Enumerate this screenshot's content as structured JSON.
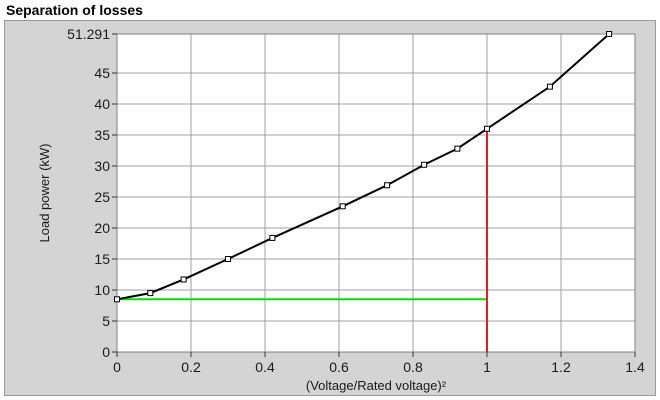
{
  "panel": {
    "title": "Separation of losses"
  },
  "chart_data": {
    "type": "line",
    "title": "",
    "xlabel": "(Voltage/Rated voltage)²",
    "ylabel": "Load power (kW)",
    "xlim": [
      0,
      1.4
    ],
    "ylim": [
      0,
      51.291
    ],
    "x_ticks": [
      0,
      0.2,
      0.4,
      0.6,
      0.8,
      1,
      1.2,
      1.4
    ],
    "x_tick_labels": [
      "0",
      "0.2",
      "0.4",
      "0.6",
      "0.8",
      "1",
      "1.2",
      "1.4"
    ],
    "y_ticks": [
      0,
      5,
      10,
      15,
      20,
      25,
      30,
      35,
      40,
      45,
      51.291
    ],
    "y_tick_labels": [
      "0",
      "5",
      "10",
      "15",
      "20",
      "25",
      "30",
      "35",
      "40",
      "45",
      "51.291"
    ],
    "grid": true,
    "series": [
      {
        "color": "#000000",
        "marker": "square",
        "x": [
          0,
          0.09,
          0.18,
          0.3,
          0.42,
          0.61,
          0.73,
          0.83,
          0.92,
          1.0,
          1.17,
          1.33
        ],
        "y": [
          8.5,
          9.5,
          11.7,
          15.0,
          18.4,
          23.5,
          26.9,
          30.2,
          32.8,
          36.0,
          42.8,
          51.291
        ]
      }
    ],
    "reference_lines": [
      {
        "color": "#00e000",
        "x": [
          0,
          1.0
        ],
        "y": [
          8.5,
          8.5
        ]
      },
      {
        "color": "#e02020",
        "x": [
          1.0,
          1.0
        ],
        "y": [
          0,
          36.0
        ]
      }
    ],
    "colors": {
      "frame_bg": "#d4d4d4",
      "plot_bg": "#ffffff",
      "grid": "#a0a0a0"
    }
  }
}
